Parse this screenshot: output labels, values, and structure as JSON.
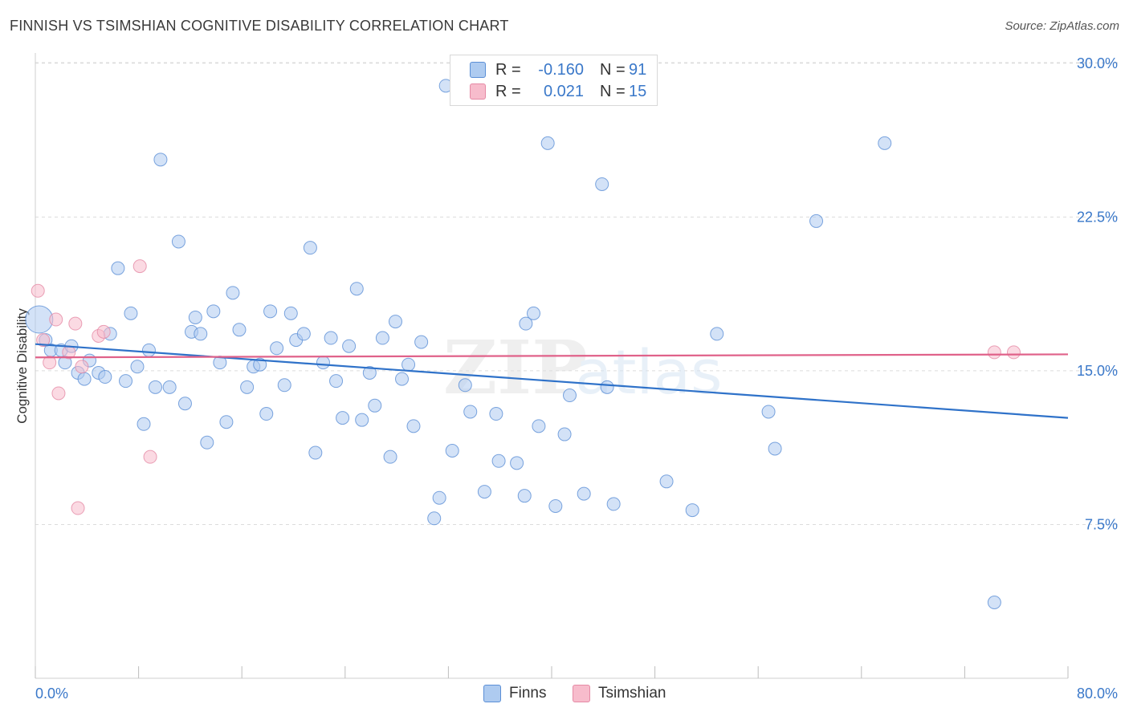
{
  "title": "FINNISH VS TSIMSHIAN COGNITIVE DISABILITY CORRELATION CHART",
  "source": "Source: ZipAtlas.com",
  "colors": {
    "finns_fill": "#aecbf0",
    "finns_stroke": "#5b8fd6",
    "finns_line": "#2f72c9",
    "tsim_fill": "#f7bccc",
    "tsim_stroke": "#e58aa5",
    "tsim_line": "#e0628a",
    "axis_text": "#3a78c9",
    "grid": "#dcdcdc"
  },
  "legend": {
    "rows": [
      {
        "r_label": "R =",
        "r_value": "-0.160",
        "n_label": "N =",
        "n_value": "91",
        "series": "finns"
      },
      {
        "r_label": "R =",
        "r_value": "0.021",
        "n_label": "N =",
        "n_value": "15",
        "series": "tsim"
      }
    ]
  },
  "chart_data": {
    "type": "scatter",
    "title": "FINNISH VS TSIMSHIAN COGNITIVE DISABILITY CORRELATION CHART",
    "xlabel": "",
    "ylabel": "Cognitive Disability",
    "xlim": [
      0,
      80
    ],
    "ylim": [
      0,
      30.5
    ],
    "x_tick_labels": [
      "0.0%",
      "80.0%"
    ],
    "y_ticks": [
      7.5,
      15.0,
      22.5,
      30.0
    ],
    "y_tick_labels": [
      "7.5%",
      "15.0%",
      "22.5%",
      "30.0%"
    ],
    "grid": true,
    "legend_position": "bottom",
    "series": [
      {
        "name": "Finns",
        "color": "#aecbf0",
        "trend": [
          [
            0,
            16.3
          ],
          [
            80,
            12.7
          ]
        ],
        "points": [
          [
            0.3,
            17.5
          ],
          [
            0.8,
            16.5
          ],
          [
            1.2,
            16.0
          ],
          [
            2.0,
            16.0
          ],
          [
            2.3,
            15.4
          ],
          [
            2.8,
            16.2
          ],
          [
            3.3,
            14.9
          ],
          [
            3.8,
            14.6
          ],
          [
            4.2,
            15.5
          ],
          [
            4.9,
            14.9
          ],
          [
            5.4,
            14.7
          ],
          [
            5.8,
            16.8
          ],
          [
            6.4,
            20.0
          ],
          [
            7.0,
            14.5
          ],
          [
            7.4,
            17.8
          ],
          [
            7.9,
            15.2
          ],
          [
            8.4,
            12.4
          ],
          [
            8.8,
            16.0
          ],
          [
            9.3,
            14.2
          ],
          [
            9.7,
            25.3
          ],
          [
            10.4,
            14.2
          ],
          [
            11.1,
            21.3
          ],
          [
            11.6,
            13.4
          ],
          [
            12.1,
            16.9
          ],
          [
            12.4,
            17.6
          ],
          [
            12.8,
            16.8
          ],
          [
            13.3,
            11.5
          ],
          [
            13.8,
            17.9
          ],
          [
            14.3,
            15.4
          ],
          [
            14.8,
            12.5
          ],
          [
            15.3,
            18.8
          ],
          [
            15.8,
            17.0
          ],
          [
            16.4,
            14.2
          ],
          [
            16.9,
            15.2
          ],
          [
            17.4,
            15.3
          ],
          [
            17.9,
            12.9
          ],
          [
            18.2,
            17.9
          ],
          [
            18.7,
            16.1
          ],
          [
            19.3,
            14.3
          ],
          [
            19.8,
            17.8
          ],
          [
            20.2,
            16.5
          ],
          [
            20.8,
            16.8
          ],
          [
            21.3,
            21.0
          ],
          [
            21.7,
            11.0
          ],
          [
            22.3,
            15.4
          ],
          [
            22.9,
            16.6
          ],
          [
            23.3,
            14.5
          ],
          [
            23.8,
            12.7
          ],
          [
            24.3,
            16.2
          ],
          [
            24.9,
            19.0
          ],
          [
            25.3,
            12.6
          ],
          [
            25.9,
            14.9
          ],
          [
            26.3,
            13.3
          ],
          [
            26.9,
            16.6
          ],
          [
            27.5,
            10.8
          ],
          [
            27.9,
            17.4
          ],
          [
            28.4,
            14.6
          ],
          [
            28.9,
            15.3
          ],
          [
            29.3,
            12.3
          ],
          [
            29.9,
            16.4
          ],
          [
            30.9,
            7.8
          ],
          [
            31.3,
            8.8
          ],
          [
            31.8,
            28.9
          ],
          [
            32.3,
            11.1
          ],
          [
            33.3,
            14.3
          ],
          [
            33.7,
            13.0
          ],
          [
            34.8,
            9.1
          ],
          [
            35.7,
            12.9
          ],
          [
            35.9,
            10.6
          ],
          [
            37.3,
            10.5
          ],
          [
            37.9,
            8.9
          ],
          [
            38.0,
            17.3
          ],
          [
            38.6,
            17.8
          ],
          [
            39.0,
            12.3
          ],
          [
            39.7,
            26.1
          ],
          [
            40.3,
            8.4
          ],
          [
            41.0,
            11.9
          ],
          [
            41.4,
            13.8
          ],
          [
            42.5,
            9.0
          ],
          [
            43.9,
            24.1
          ],
          [
            44.3,
            14.2
          ],
          [
            44.8,
            8.5
          ],
          [
            48.9,
            9.6
          ],
          [
            50.9,
            8.2
          ],
          [
            52.8,
            16.8
          ],
          [
            56.8,
            13.0
          ],
          [
            57.3,
            11.2
          ],
          [
            60.5,
            22.3
          ],
          [
            65.8,
            26.1
          ],
          [
            74.3,
            3.7
          ],
          [
            45.0,
            29.0
          ]
        ]
      },
      {
        "name": "Tsimshian",
        "color": "#f7bccc",
        "trend": [
          [
            0,
            15.65
          ],
          [
            80,
            15.8
          ]
        ],
        "points": [
          [
            0.2,
            18.9
          ],
          [
            0.6,
            16.5
          ],
          [
            1.1,
            15.4
          ],
          [
            1.6,
            17.5
          ],
          [
            1.8,
            13.9
          ],
          [
            2.6,
            15.9
          ],
          [
            3.1,
            17.3
          ],
          [
            3.3,
            8.3
          ],
          [
            3.6,
            15.2
          ],
          [
            4.9,
            16.7
          ],
          [
            5.3,
            16.9
          ],
          [
            8.1,
            20.1
          ],
          [
            8.9,
            10.8
          ],
          [
            74.3,
            15.9
          ],
          [
            75.8,
            15.9
          ]
        ]
      }
    ]
  },
  "bottom_legend": {
    "finns": "Finns",
    "tsim": "Tsimshian"
  },
  "watermark": {
    "zip": "ZIP",
    "atlas": "atlas"
  }
}
